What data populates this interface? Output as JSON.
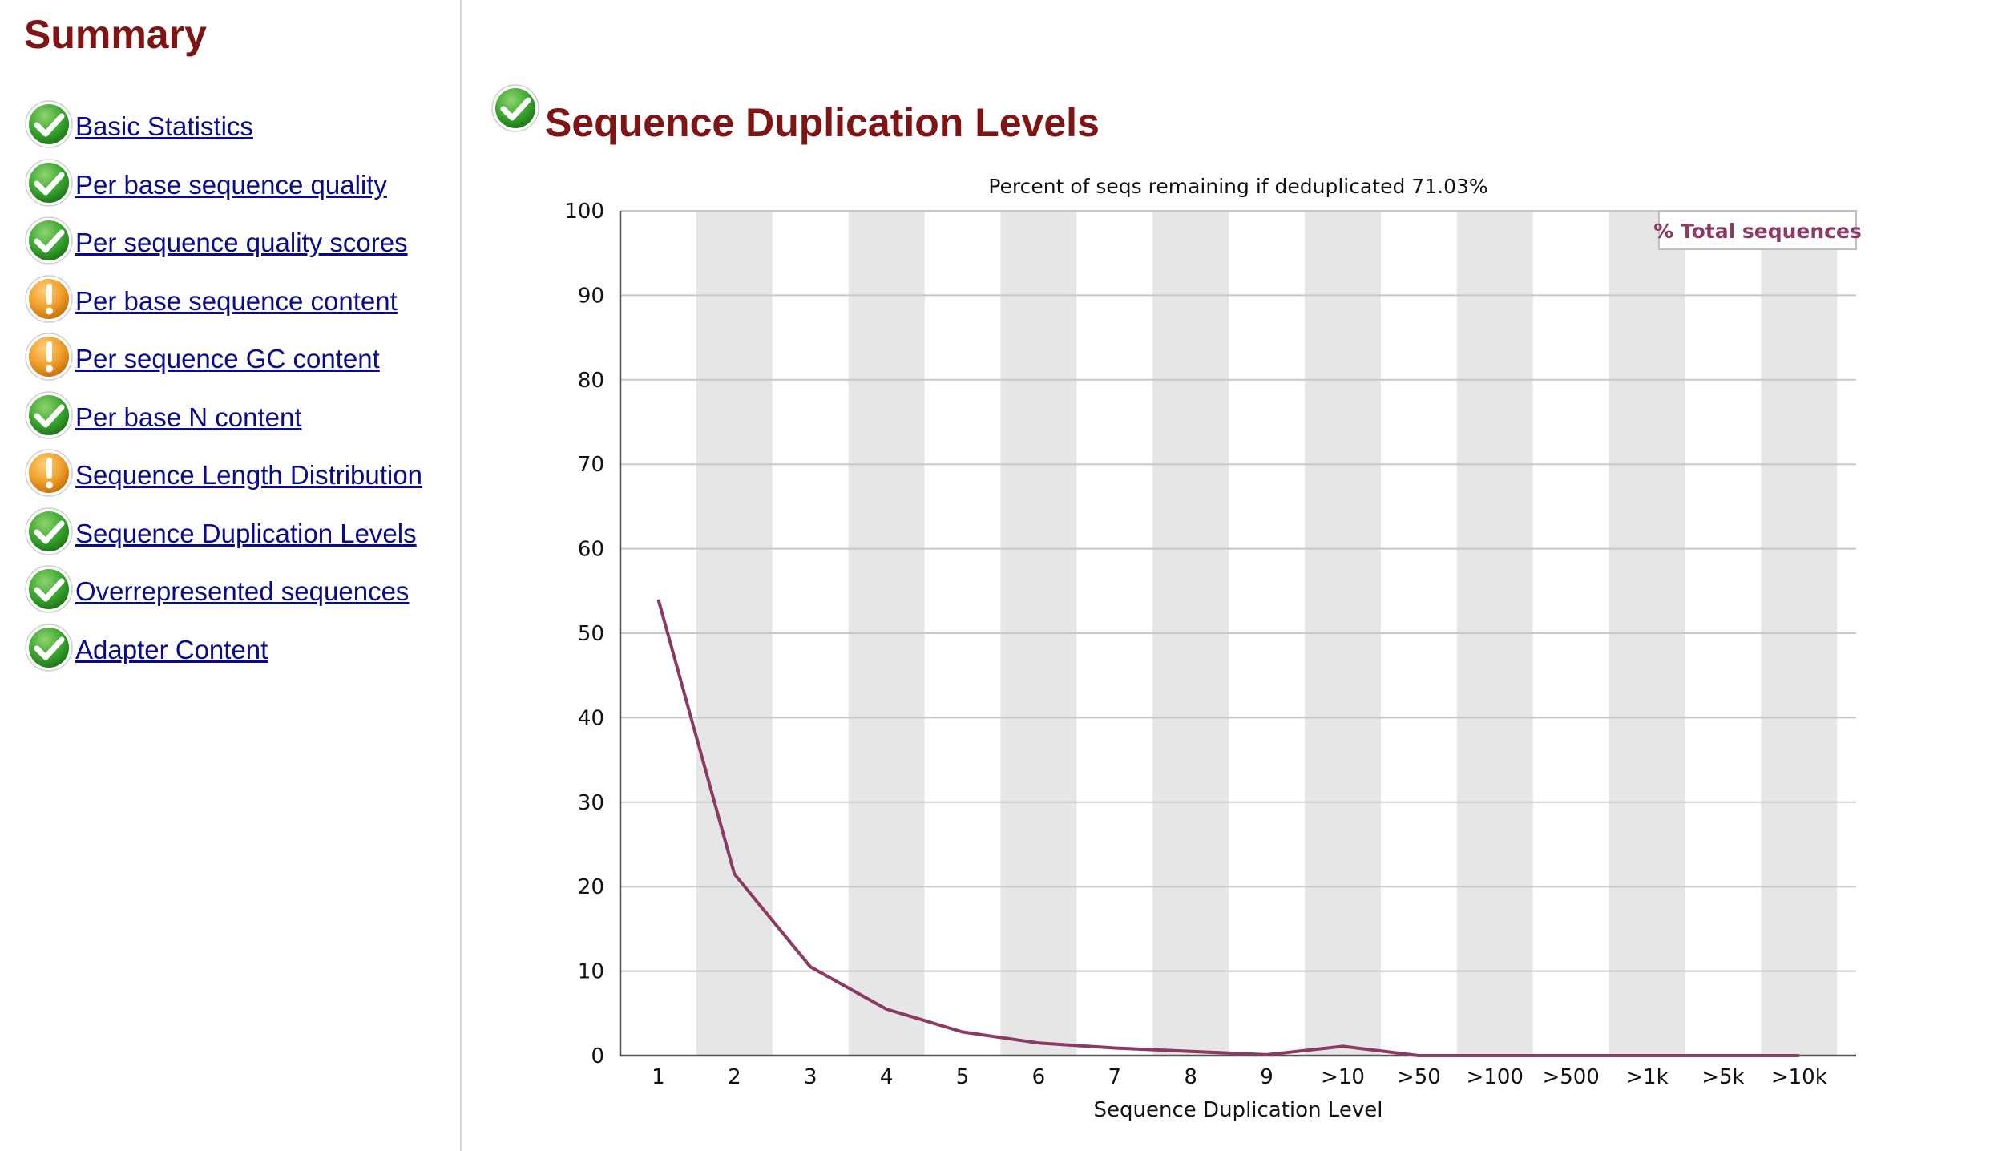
{
  "summary": {
    "title": "Summary",
    "modules": [
      {
        "label": "Basic Statistics",
        "status": "pass",
        "icon": "check-icon"
      },
      {
        "label": "Per base sequence quality",
        "status": "pass",
        "icon": "check-icon"
      },
      {
        "label": "Per sequence quality scores",
        "status": "pass",
        "icon": "check-icon"
      },
      {
        "label": "Per base sequence content",
        "status": "warn",
        "icon": "warning-icon"
      },
      {
        "label": "Per sequence GC content",
        "status": "warn",
        "icon": "warning-icon"
      },
      {
        "label": "Per base N content",
        "status": "pass",
        "icon": "check-icon"
      },
      {
        "label": "Sequence Length Distribution",
        "status": "warn",
        "icon": "warning-icon"
      },
      {
        "label": "Sequence Duplication Levels",
        "status": "pass",
        "icon": "check-icon"
      },
      {
        "label": "Overrepresented sequences",
        "status": "pass",
        "icon": "check-icon"
      },
      {
        "label": "Adapter Content",
        "status": "pass",
        "icon": "check-icon"
      }
    ]
  },
  "main": {
    "title": "Sequence Duplication Levels",
    "status": "pass",
    "icon": "check-icon"
  },
  "colors": {
    "heading": "#7f1414",
    "link": "#0a0a8c",
    "series": "#8b3a62",
    "band": "#e6e6e6",
    "pass": "#3da832",
    "warn": "#f0a02c"
  },
  "chart_data": {
    "type": "line",
    "title": "Percent of seqs remaining if deduplicated 71.03%",
    "xlabel": "Sequence Duplication Level",
    "ylabel": "",
    "categories": [
      "1",
      "2",
      "3",
      "4",
      "5",
      "6",
      "7",
      "8",
      "9",
      ">10",
      ">50",
      ">100",
      ">500",
      ">1k",
      ">5k",
      ">10k"
    ],
    "yticks": [
      0,
      10,
      20,
      30,
      40,
      50,
      60,
      70,
      80,
      90,
      100
    ],
    "ylim": [
      0,
      100
    ],
    "grid": true,
    "alternating_bands": true,
    "legend_position": "top-right",
    "series": [
      {
        "name": "% Total sequences",
        "color": "#8b3a62",
        "values": [
          54.0,
          21.5,
          10.5,
          5.5,
          2.8,
          1.5,
          0.9,
          0.5,
          0.1,
          1.1,
          0.0,
          0.0,
          0.0,
          0.0,
          0.0,
          0.0
        ]
      }
    ]
  }
}
